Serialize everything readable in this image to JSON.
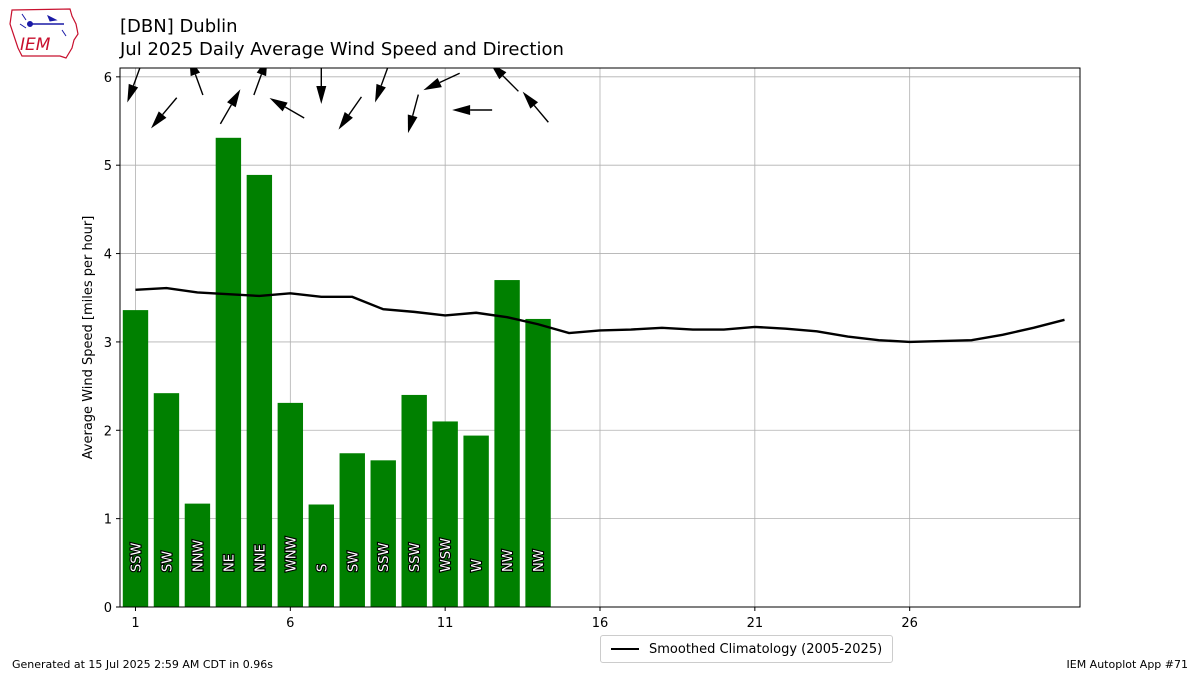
{
  "header": {
    "title_line1": "[DBN] Dublin",
    "title_line2": "Jul 2025 Daily Average Wind Speed and Direction"
  },
  "logo": {
    "text": "IEM",
    "icon": "iem-iowa-logo-icon"
  },
  "footer": {
    "generated": "Generated at 15 Jul 2025 2:59 AM CDT in 0.96s",
    "app": "IEM Autoplot App #71"
  },
  "legend": {
    "label": "Smoothed Climatology (2005-2025)"
  },
  "colors": {
    "bar": "#008000",
    "line": "#000000",
    "grid": "#b0b0b0",
    "arrow": "#000000"
  },
  "chart_data": {
    "type": "bar",
    "ylabel": "Average Wind Speed [miles per hour]",
    "xlim": [
      0.5,
      31.5
    ],
    "ylim": [
      0,
      6.1
    ],
    "xticks": [
      1,
      6,
      11,
      16,
      21,
      26
    ],
    "yticks": [
      0,
      1,
      2,
      3,
      4,
      5,
      6
    ],
    "grid": true,
    "legend_position": "bottom-center",
    "days": [
      1,
      2,
      3,
      4,
      5,
      6,
      7,
      8,
      9,
      10,
      11,
      12,
      13,
      14
    ],
    "values": [
      3.36,
      2.42,
      1.17,
      5.31,
      4.89,
      2.31,
      1.16,
      1.74,
      1.66,
      2.4,
      2.1,
      1.94,
      3.7,
      3.26
    ],
    "directions": [
      "SSW",
      "SW",
      "NNW",
      "NE",
      "NNE",
      "WNW",
      "S",
      "SW",
      "SSW",
      "SSW",
      "WSW",
      "W",
      "NW",
      "NW"
    ],
    "arrow_degrees": [
      200,
      220,
      340,
      30,
      20,
      300,
      180,
      215,
      200,
      195,
      245,
      270,
      315,
      320
    ],
    "climatology": {
      "name": "Smoothed Climatology (2005-2025)",
      "x": [
        1,
        2,
        3,
        4,
        5,
        6,
        7,
        8,
        9,
        10,
        11,
        12,
        13,
        14,
        15,
        16,
        17,
        18,
        19,
        20,
        21,
        22,
        23,
        24,
        25,
        26,
        27,
        28,
        29,
        30,
        31
      ],
      "y": [
        3.59,
        3.61,
        3.56,
        3.54,
        3.52,
        3.55,
        3.51,
        3.51,
        3.37,
        3.34,
        3.3,
        3.33,
        3.28,
        3.2,
        3.1,
        3.13,
        3.14,
        3.16,
        3.14,
        3.14,
        3.17,
        3.15,
        3.12,
        3.06,
        3.02,
        3.0,
        3.01,
        3.02,
        3.08,
        3.16,
        3.25
      ]
    }
  }
}
